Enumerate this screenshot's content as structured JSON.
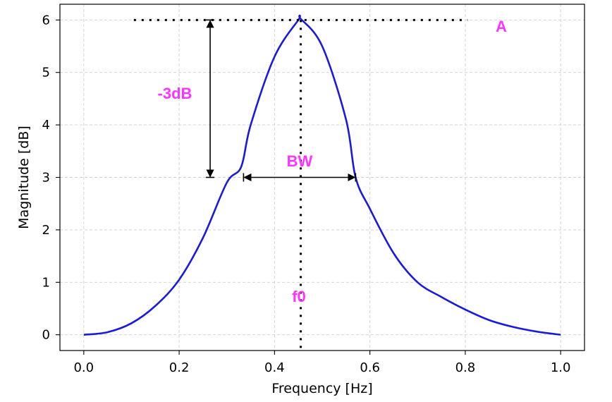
{
  "chart_data": {
    "type": "line",
    "title": "",
    "xlabel": "Frequency [Hz]",
    "ylabel": "Magnitude [dB]",
    "xlim": [
      -0.05,
      1.05
    ],
    "ylim": [
      -0.3,
      6.3
    ],
    "xticks": [
      0.0,
      0.2,
      0.4,
      0.6,
      0.8,
      1.0
    ],
    "xtick_labels": [
      "0.0",
      "0.2",
      "0.4",
      "0.6",
      "0.8",
      "1.0"
    ],
    "yticks": [
      0,
      1,
      2,
      3,
      4,
      5,
      6
    ],
    "ytick_labels": [
      "0",
      "1",
      "2",
      "3",
      "4",
      "5",
      "6"
    ],
    "grid": true,
    "series": [
      {
        "color": "#1a1adf",
        "x": [
          0.0,
          0.05,
          0.1,
          0.15,
          0.2,
          0.25,
          0.3,
          0.33,
          0.35,
          0.4,
          0.45,
          0.455,
          0.5,
          0.55,
          0.57,
          0.6,
          0.65,
          0.7,
          0.75,
          0.8,
          0.85,
          0.9,
          0.95,
          1.0
        ],
        "y": [
          0.0,
          0.05,
          0.22,
          0.55,
          1.05,
          1.85,
          2.9,
          3.2,
          4.0,
          5.3,
          6.0,
          6.02,
          5.5,
          4.1,
          3.0,
          2.4,
          1.55,
          1.0,
          0.72,
          0.48,
          0.28,
          0.15,
          0.06,
          0.0
        ]
      }
    ],
    "annotations": {
      "peak_label": "A",
      "drop_label": "-3dB",
      "bandwidth_label": "BW",
      "center_label": "f0",
      "label_color": "#ff33ff",
      "peak_value": 6.0,
      "center_frequency": 0.455,
      "half_power_value": 3.0,
      "bandwidth_range": [
        0.335,
        0.57
      ],
      "peak_line_range": [
        0.105,
        0.805
      ],
      "drop_arrow_x": 0.265
    }
  }
}
